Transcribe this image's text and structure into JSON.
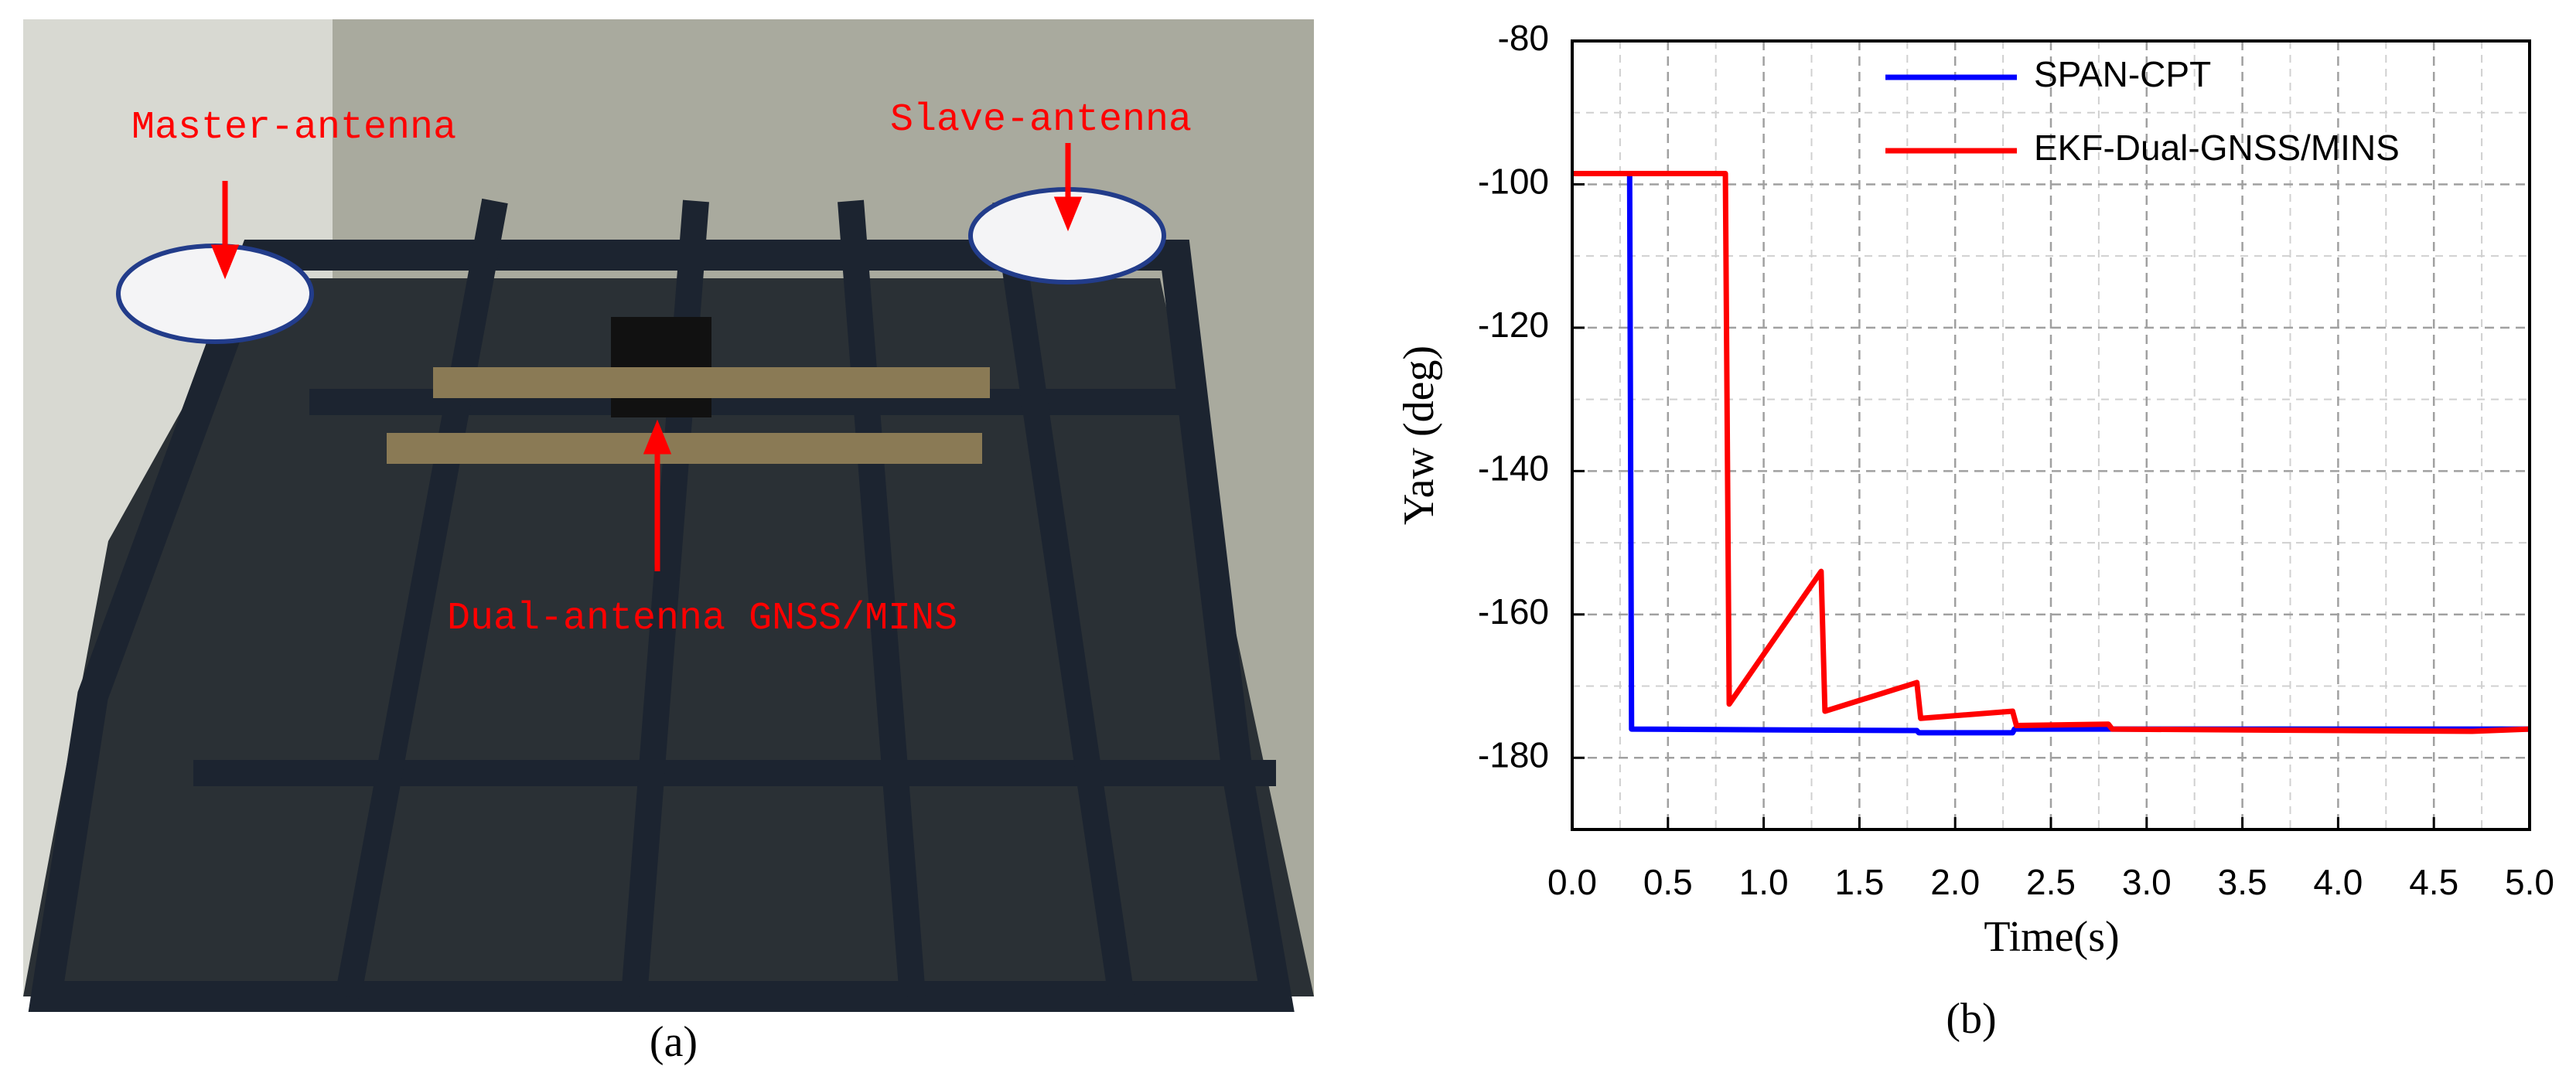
{
  "photo": {
    "labels": [
      "Master-antenna",
      "Slave-antenna",
      "Dual-antenna GNSS/MINS"
    ],
    "caption": "(a)"
  },
  "chart_data": {
    "type": "line",
    "caption": "(b)",
    "xlabel": "Time(s)",
    "ylabel": "Yaw (deg)",
    "xlim": [
      0,
      5
    ],
    "ylim": [
      -190,
      -80
    ],
    "xticks": [
      {
        "value": 0,
        "label": "0.0"
      },
      {
        "value": 0.5,
        "label": "0.5"
      },
      {
        "value": 1,
        "label": "1.0"
      },
      {
        "value": 1.5,
        "label": "1.5"
      },
      {
        "value": 2,
        "label": "2.0"
      },
      {
        "value": 2.5,
        "label": "2.5"
      },
      {
        "value": 3,
        "label": "3.0"
      },
      {
        "value": 3.5,
        "label": "3.5"
      },
      {
        "value": 4,
        "label": "4.0"
      },
      {
        "value": 4.5,
        "label": "4.5"
      },
      {
        "value": 5,
        "label": "5.0"
      }
    ],
    "yticks": [
      -80,
      -100,
      -120,
      -140,
      -160,
      -180
    ],
    "grid": true,
    "legend": "upper right",
    "series": [
      {
        "name": "SPAN-CPT",
        "color": "#0000ff",
        "x": [
          0,
          0.3,
          0.31,
          1.8,
          1.81,
          2.3,
          2.31,
          5.0
        ],
        "values": [
          -98.5,
          -98.5,
          -176,
          -176.2,
          -176.5,
          -176.5,
          -176,
          -176
        ]
      },
      {
        "name": "EKF-Dual-GNSS/MINS",
        "color": "#ff0000",
        "x": [
          0,
          0.8,
          0.82,
          1.3,
          1.32,
          1.8,
          1.82,
          2.3,
          2.32,
          2.8,
          2.82,
          4.7,
          5.0
        ],
        "values": [
          -98.5,
          -98.5,
          -172.5,
          -154,
          -173.5,
          -169.5,
          -174.5,
          -173.5,
          -175.5,
          -175.3,
          -176,
          -176.3,
          -176
        ]
      }
    ]
  }
}
